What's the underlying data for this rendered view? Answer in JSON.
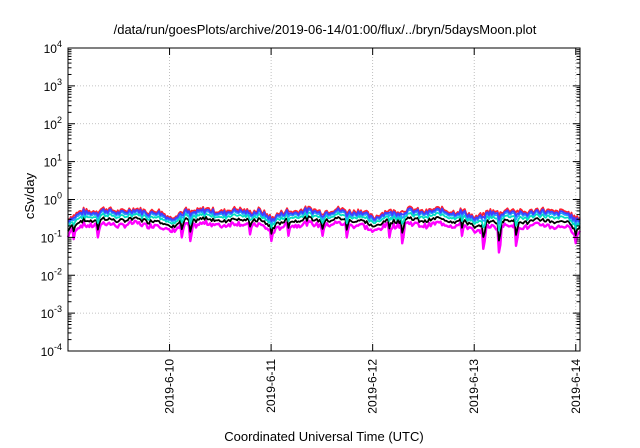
{
  "chart_data": {
    "type": "line",
    "title": "/data/run/goesPlots/archive/2019-06-14/01:00/flux/../bryn/5daysMoon.plot",
    "xlabel": "Coordinated Universal Time (UTC)",
    "ylabel": "cSv/day",
    "x_ticks": [
      "2019-6-10",
      "2019-6-11",
      "2019-6-12",
      "2019-6-13",
      "2019-6-14"
    ],
    "x_range": [
      "2019-06-09 00:00",
      "2019-06-14 01:00"
    ],
    "y_scale": "log",
    "ylim": [
      0.0001,
      10000
    ],
    "y_ticks": [
      {
        "base": "10",
        "exp": "-4"
      },
      {
        "base": "10",
        "exp": "-3"
      },
      {
        "base": "10",
        "exp": "-2"
      },
      {
        "base": "10",
        "exp": "-1"
      },
      {
        "base": "10",
        "exp": "0"
      },
      {
        "base": "10",
        "exp": "1"
      },
      {
        "base": "10",
        "exp": "2"
      },
      {
        "base": "10",
        "exp": "3"
      },
      {
        "base": "10",
        "exp": "4"
      }
    ],
    "grid": true,
    "days": [
      {
        "date": "2019-06-09",
        "top": 0.62,
        "bottom": 0.24
      },
      {
        "date": "2019-06-10",
        "top": 0.62,
        "bottom": 0.24
      },
      {
        "date": "2019-06-11",
        "top": 0.62,
        "bottom": 0.24
      },
      {
        "date": "2019-06-12",
        "top": 0.62,
        "bottom": 0.24
      },
      {
        "date": "2019-06-13",
        "top": 0.6,
        "bottom": 0.22
      }
    ],
    "dips": [
      {
        "time": "2019-06-09 00:05",
        "bottom": 0.1
      },
      {
        "time": "2019-06-09 01:30",
        "bottom": 0.09
      },
      {
        "time": "2019-06-09 07:00",
        "bottom": 0.1
      },
      {
        "time": "2019-06-10 03:00",
        "bottom": 0.1
      },
      {
        "time": "2019-06-10 05:00",
        "bottom": 0.08
      },
      {
        "time": "2019-06-10 19:00",
        "bottom": 0.12
      },
      {
        "time": "2019-06-11 00:00",
        "bottom": 0.08
      },
      {
        "time": "2019-06-11 04:00",
        "bottom": 0.11
      },
      {
        "time": "2019-06-11 12:00",
        "bottom": 0.11
      },
      {
        "time": "2019-06-11 18:00",
        "bottom": 0.1
      },
      {
        "time": "2019-06-12 04:00",
        "bottom": 0.1
      },
      {
        "time": "2019-06-12 07:00",
        "bottom": 0.07
      },
      {
        "time": "2019-06-12 21:00",
        "bottom": 0.11
      },
      {
        "time": "2019-06-13 02:00",
        "bottom": 0.05
      },
      {
        "time": "2019-06-13 06:00",
        "bottom": 0.04
      },
      {
        "time": "2019-06-13 10:00",
        "bottom": 0.06
      },
      {
        "time": "2019-06-14 00:00",
        "bottom": 0.07
      }
    ],
    "series_colors": [
      "#ff00ff",
      "#000000",
      "#00e0c0",
      "#20a0ff",
      "#ff2030",
      "#4040ff"
    ]
  }
}
